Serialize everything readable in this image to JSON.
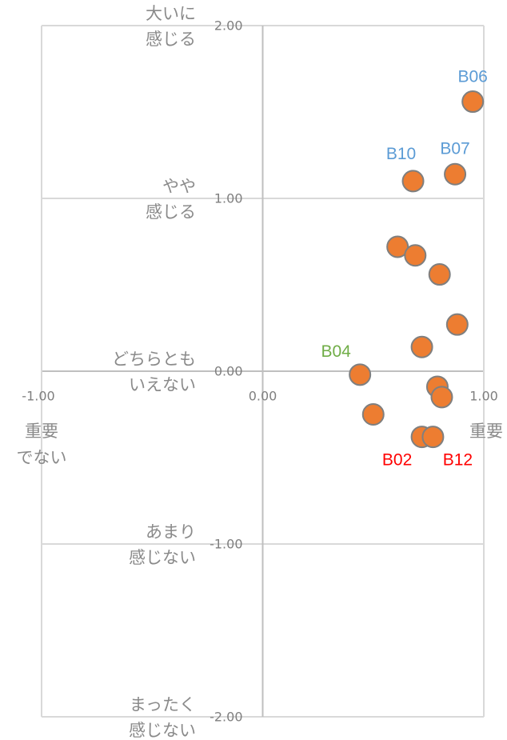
{
  "chart_data": {
    "type": "scatter",
    "series": [
      {
        "color": "#ed7d31",
        "x": [
          0.95,
          0.87,
          0.68,
          0.61,
          0.69,
          0.8,
          0.88,
          0.72,
          0.44,
          0.79,
          0.81,
          0.5,
          0.72,
          0.77
        ],
        "values": [
          1.56,
          1.14,
          1.1,
          0.72,
          0.67,
          0.56,
          0.27,
          0.14,
          -0.02,
          -0.09,
          -0.15,
          -0.25,
          -0.38,
          -0.38
        ],
        "point_labels": [
          "B06",
          "B07",
          "B10",
          null,
          null,
          null,
          null,
          null,
          "B04",
          null,
          null,
          null,
          "B02",
          "B12"
        ],
        "label_colors": [
          "#5b9bd5",
          "#5b9bd5",
          "#5b9bd5",
          null,
          null,
          null,
          null,
          null,
          "#70ad47",
          null,
          null,
          null,
          "#ff0000",
          "#ff0000"
        ]
      }
    ],
    "xlim": [
      -1,
      1
    ],
    "ylim": [
      -2,
      2
    ],
    "xticks": [
      {
        "value": -1,
        "label": "-1.00"
      },
      {
        "value": 0,
        "label": "0.00"
      },
      {
        "value": 1,
        "label": "1.00"
      }
    ],
    "yticks": [
      {
        "value": -2,
        "label": "-2.00"
      },
      {
        "value": -1,
        "label": "-1.00"
      },
      {
        "value": 0,
        "label": "0.00"
      },
      {
        "value": 1,
        "label": "1.00"
      },
      {
        "value": 2,
        "label": "2.00"
      }
    ],
    "y_category_labels": [
      {
        "value": 2,
        "lines": [
          "大いに",
          "感じる"
        ]
      },
      {
        "value": 1,
        "lines": [
          "やや",
          "感じる"
        ]
      },
      {
        "value": 0,
        "lines": [
          "どちらとも",
          "いえない"
        ]
      },
      {
        "value": -1,
        "lines": [
          "あまり",
          "感じない"
        ]
      },
      {
        "value": -2,
        "lines": [
          "まったく",
          "感じない"
        ]
      }
    ],
    "x_end_labels": {
      "left": [
        "重要",
        "でない"
      ],
      "right": [
        "重要"
      ]
    },
    "grid": true
  }
}
